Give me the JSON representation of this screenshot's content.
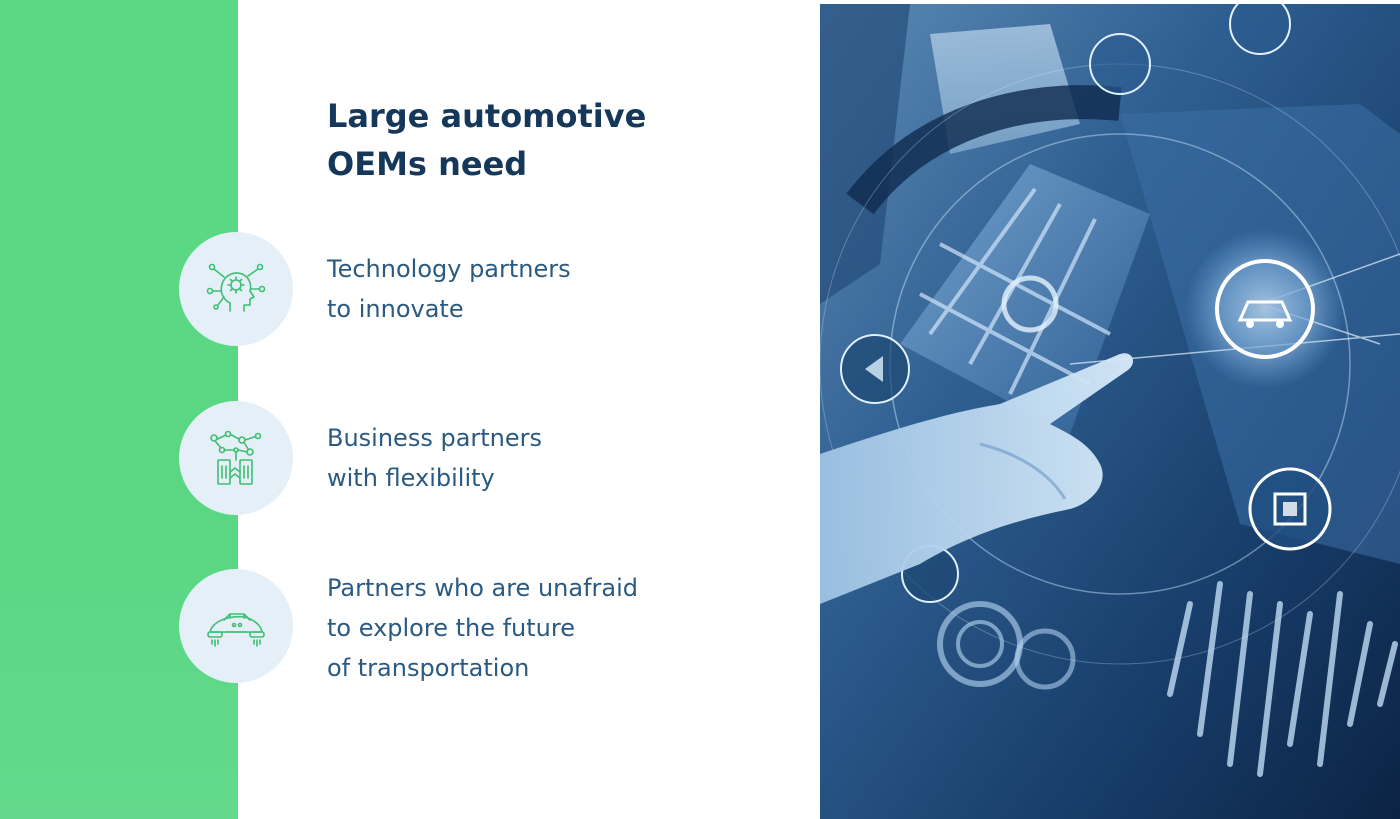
{
  "heading": {
    "line1": "Large automotive",
    "line2": "OEMs need"
  },
  "items": [
    {
      "icon": "brain-network-icon",
      "line1": "Technology partners",
      "line2": "to innovate"
    },
    {
      "icon": "business-network-icon",
      "line1": "Business partners",
      "line2": "with flexibility"
    },
    {
      "icon": "future-car-icon",
      "line1": "Partners who are unafraid",
      "line2": "to explore the future",
      "line3": "of transportation"
    }
  ],
  "colors": {
    "accent_green": "#5cd884",
    "heading_navy": "#14375a",
    "body_blue": "#2a5a82",
    "icon_circle": "#e4eff8",
    "icon_stroke": "#3fbf72"
  }
}
